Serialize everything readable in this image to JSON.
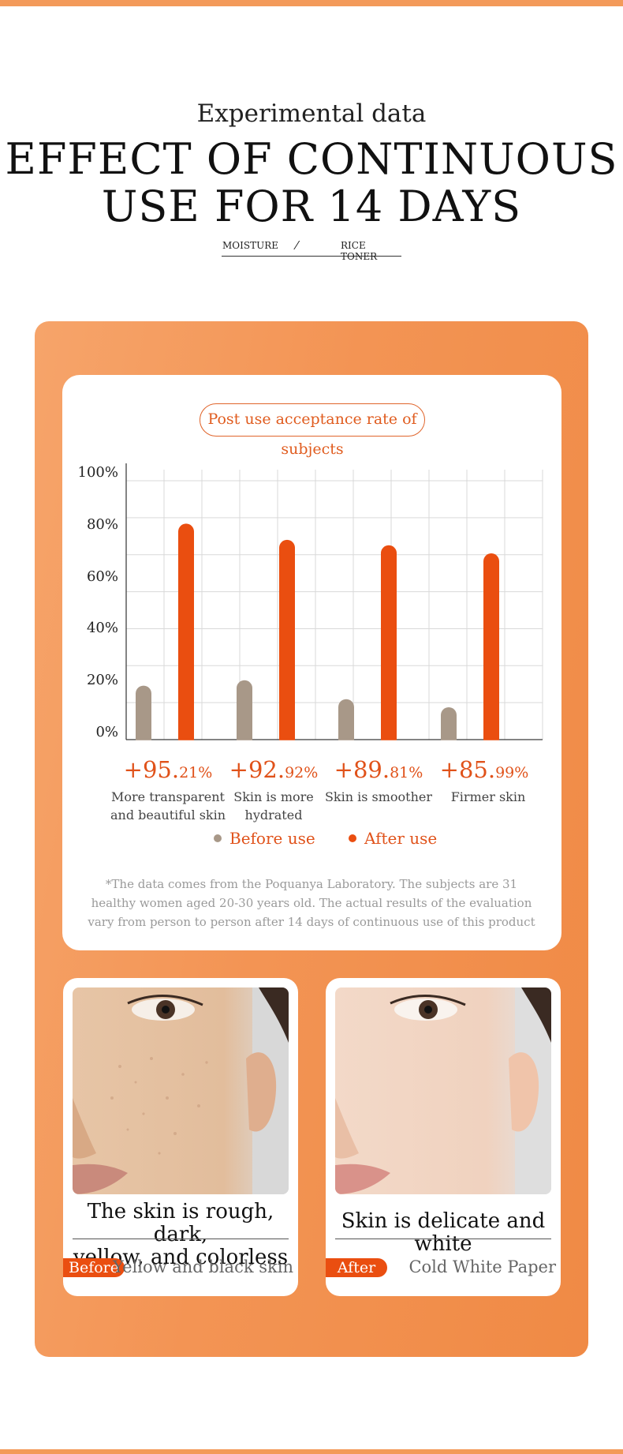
{
  "header": {
    "subtitle": "Experimental data",
    "title_line1": "EFFECT OF CONTINUOUS",
    "title_line2": "USE FOR 14 DAYS",
    "tag_left": "MOISTURE",
    "tag_sep": "⁄",
    "tag_right": "RICE TONER"
  },
  "chart_card": {
    "pill_label": "Post use acceptance rate of subjects",
    "stats": [
      {
        "main": "+95.",
        "decimal": "21%",
        "caption_line1": "More transparent",
        "caption_line2": "and beautiful skin"
      },
      {
        "main": "+92.",
        "decimal": "92%",
        "caption_line1": "Skin is more",
        "caption_line2": "hydrated"
      },
      {
        "main": "+89.",
        "decimal": "81%",
        "caption_line1": "Skin is smoother",
        "caption_line2": ""
      },
      {
        "main": "+85.",
        "decimal": "99%",
        "caption_line1": "Firmer skin",
        "caption_line2": ""
      }
    ],
    "legend_before": "Before use",
    "legend_after": "After use",
    "footnote": "*The data comes from the Poquanya Laboratory. The subjects are 31 healthy women aged 20-30 years old. The actual results of the evaluation vary from person to person after 14 days of continuous use of this product"
  },
  "chart_data": {
    "type": "bar",
    "categories": [
      "More transparent and beautiful skin",
      "Skin is more hydrated",
      "Skin is smoother",
      "Firmer skin"
    ],
    "series": [
      {
        "name": "Before use",
        "values": [
          20,
          22,
          15,
          12
        ],
        "color": "#a89888"
      },
      {
        "name": "After use",
        "values": [
          80,
          74,
          72,
          69
        ],
        "color": "#ea4e10"
      }
    ],
    "ylim": [
      0,
      100
    ],
    "yticks": [
      "0%",
      "20%",
      "40%",
      "60%",
      "80%",
      "100%"
    ],
    "grid": true,
    "legend_position": "bottom"
  },
  "comparison": {
    "before": {
      "caption_line1": "The skin is rough, dark,",
      "caption_line2": "yellow, and colorless",
      "badge": "Before",
      "label": "Yellow and black skin"
    },
    "after": {
      "caption": "Skin is delicate and white",
      "badge": "After",
      "label": "Cold White Paper"
    }
  },
  "colors": {
    "accent": "#ea4e10",
    "panel": "#f39454",
    "before_bar": "#a89888"
  }
}
